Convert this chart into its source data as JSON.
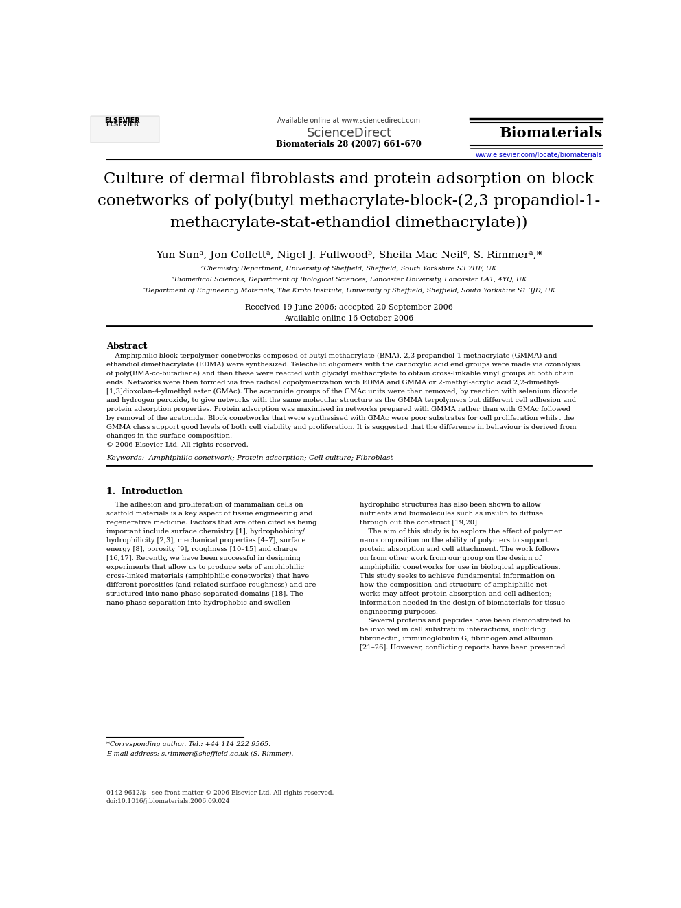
{
  "bg_color": "#ffffff",
  "page_width": 9.92,
  "page_height": 13.23,
  "header_available": "Available online at www.sciencedirect.com",
  "header_sciencedirect": "ScienceDirect",
  "header_journal_name": "Biomaterials",
  "header_journal_info": "Biomaterials 28 (2007) 661–670",
  "header_journal_url": "www.elsevier.com/locate/biomaterials",
  "title_line1": "Culture of dermal fibroblasts and protein adsorption on block",
  "title_line2_pre": "conetworks of poly(butyl methacrylate-",
  "title_line2_italic": "block",
  "title_line2_post": "-(2,3 propandiol-1-",
  "title_line3_pre": "methacrylate-",
  "title_line3_italic": "stat",
  "title_line3_post": "-ethandiol dimethacrylate))",
  "authors": "Yun Sunᵃ, Jon Collettᵃ, Nigel J. Fullwoodᵇ, Sheila Mac Neilᶜ, S. Rimmerᵃ,*",
  "affil_a": "ᵃChemistry Department, University of Sheffield, Sheffield, South Yorkshire S3 7HF, UK",
  "affil_b": "ᵇBiomedical Sciences, Department of Biological Sciences, Lancaster University, Lancaster LA1, 4YQ, UK",
  "affil_c": "ᶜDepartment of Engineering Materials, The Kroto Institute, University of Sheffield, Sheffield, South Yorkshire S1 3JD, UK",
  "received": "Received 19 June 2006; accepted 20 September 2006",
  "available": "Available online 16 October 2006",
  "abstract_title": "Abstract",
  "abstract_text": "    Amphiphilic block terpolymer conetworks composed of butyl methacrylate (BMA), 2,3 propandiol-1-methacrylate (GMMA) and\nethandiol dimethacrylate (EDMA) were synthesized. Telechelic oligomers with the carboxylic acid end groups were made via ozonolysis\nof poly(BMA-co-butadiene) and then these were reacted with glycidyl methacrylate to obtain cross-linkable vinyl groups at both chain\nends. Networks were then formed via free radical copolymerization with EDMA and GMMA or 2-methyl-acrylic acid 2,2-dimethyl-\n[1,3]dioxolan-4-ylmethyl ester (GMAc). The acetonide groups of the GMAc units were then removed, by reaction with selenium dioxide\nand hydrogen peroxide, to give networks with the same molecular structure as the GMMA terpolymers but different cell adhesion and\nprotein adsorption properties. Protein adsorption was maximised in networks prepared with GMMA rather than with GMAc followed\nby removal of the acetonide. Block conetworks that were synthesised with GMAc were poor substrates for cell proliferation whilst the\nGMMA class support good levels of both cell viability and proliferation. It is suggested that the difference in behaviour is derived from\nchanges in the surface composition.\n© 2006 Elsevier Ltd. All rights reserved.",
  "keywords": "Keywords:  Amphiphilic conetwork; Protein adsorption; Cell culture; Fibroblast",
  "intro_heading_num": "1.",
  "intro_heading": "Introduction",
  "intro_left": "    The adhesion and proliferation of mammalian cells on\nscaffold materials is a key aspect of tissue engineering and\nregenerative medicine. Factors that are often cited as being\nimportant include surface chemistry [1], hydrophobicity/\nhydrophilicity [2,3], mechanical properties [4–7], surface\nenergy [8], porosity [9], roughness [10–15] and charge\n[16,17]. Recently, we have been successful in designing\nexperiments that allow us to produce sets of amphiphilic\ncross-linked materials (amphiphilic conetworks) that have\ndifferent porosities (and related surface roughness) and are\nstructured into nano-phase separated domains [18]. The\nnano-phase separation into hydrophobic and swollen",
  "intro_right": "hydrophilic structures has also been shown to allow\nnutrients and biomolecules such as insulin to diffuse\nthrough out the construct [19,20].\n    The aim of this study is to explore the effect of polymer\nnanocomposition on the ability of polymers to support\nprotein absorption and cell attachment. The work follows\non from other work from our group on the design of\namphiphilic conetworks for use in biological applications.\nThis study seeks to achieve fundamental information on\nhow the composition and structure of amphiphilic net-\nworks may affect protein absorption and cell adhesion;\ninformation needed in the design of biomaterials for tissue-\nengineering purposes.\n    Several proteins and peptides have been demonstrated to\nbe involved in cell substratum interactions, including\nfibronectin, immunoglobulin G, fibrinogen and albumin\n[21–26]. However, conflicting reports have been presented",
  "corresponding_line1": "*Corresponding author. Tel.: +44 114 222 9565.",
  "corresponding_line2": "E-mail address: s.rimmer@sheffield.ac.uk (S. Rimmer).",
  "footer_line1": "0142-9612/$ - see front matter © 2006 Elsevier Ltd. All rights reserved.",
  "footer_line2": "doi:10.1016/j.biomaterials.2006.09.024",
  "link_color": "#0000cc",
  "title_fontsize": 16.5,
  "author_fontsize": 11,
  "body_fontsize": 7.2,
  "section_title_fontsize": 9
}
